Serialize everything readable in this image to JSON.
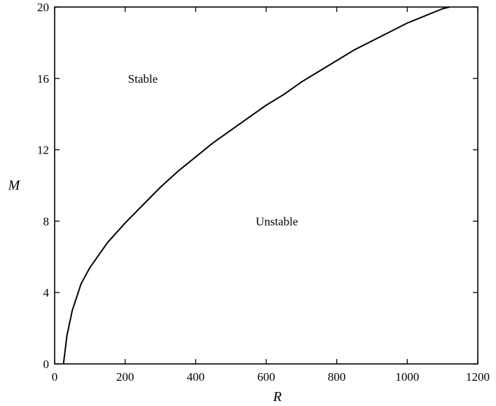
{
  "chart_data": {
    "type": "line",
    "title": "",
    "xlabel": "R",
    "ylabel": "M",
    "xlim": [
      0,
      1200
    ],
    "ylim": [
      0,
      20
    ],
    "xticks": [
      0,
      200,
      400,
      600,
      800,
      1000,
      1200
    ],
    "yticks": [
      0,
      4,
      8,
      12,
      16,
      20
    ],
    "grid": false,
    "legend": "none",
    "annotations": [
      {
        "text": "Stable",
        "x": 270,
        "y": 16
      },
      {
        "text": "Unstable",
        "x": 650,
        "y": 8
      }
    ],
    "series": [
      {
        "x": [
          25,
          35,
          50,
          75,
          100,
          150,
          200,
          250,
          300,
          350,
          400,
          450,
          500,
          550,
          600,
          650,
          700,
          750,
          800,
          850,
          900,
          950,
          1000,
          1050,
          1100,
          1120
        ],
        "y": [
          0,
          1.6,
          3.0,
          4.5,
          5.4,
          6.8,
          7.9,
          8.9,
          9.9,
          10.8,
          11.6,
          12.4,
          13.1,
          13.8,
          14.5,
          15.1,
          15.8,
          16.4,
          17.0,
          17.6,
          18.1,
          18.6,
          19.1,
          19.5,
          19.9,
          20.0
        ]
      }
    ]
  }
}
